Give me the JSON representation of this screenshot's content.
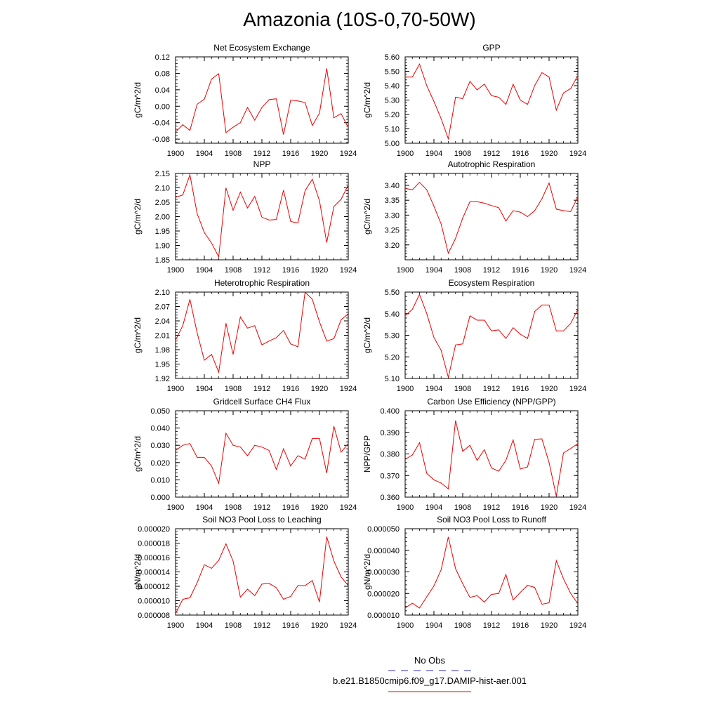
{
  "figure": {
    "title": "Amazonia (10S-0,70-50W)"
  },
  "colors": {
    "model_line": "#ee0000",
    "obs_line": "#5555cc"
  },
  "legend": {
    "items": [
      {
        "label": "No Obs",
        "style": "dashed",
        "color": "#5555cc"
      },
      {
        "label": "b.e21.B1850cmip6.f09_g17.DAMIP-hist-aer.001",
        "style": "solid",
        "color": "#ee0000"
      }
    ]
  },
  "chart_data": [
    {
      "type": "line",
      "title": "Net Ecosystem Exchange",
      "ylabel": "gC/m^2/d",
      "xlim": [
        1900,
        1924
      ],
      "ylim": [
        -0.09,
        0.12
      ],
      "xticks": [
        1900,
        1904,
        1908,
        1912,
        1916,
        1920,
        1924
      ],
      "yticks": [
        -0.08,
        -0.04,
        0.0,
        0.04,
        0.08,
        0.12
      ],
      "ytick_labels": [
        "-0.08",
        "-0.04",
        "0.00",
        "0.04",
        "0.08",
        "0.12"
      ],
      "series": [
        {
          "x": [
            1900,
            1901,
            1902,
            1903,
            1904,
            1905,
            1906,
            1907,
            1908,
            1909,
            1910,
            1911,
            1912,
            1913,
            1914,
            1915,
            1916,
            1917,
            1918,
            1919,
            1920,
            1921,
            1922,
            1923,
            1924
          ],
          "values": [
            -0.063,
            -0.045,
            -0.059,
            0.005,
            0.017,
            0.066,
            0.079,
            -0.064,
            -0.051,
            -0.04,
            -0.003,
            -0.034,
            -0.003,
            0.016,
            0.018,
            -0.069,
            0.015,
            0.013,
            0.009,
            -0.047,
            -0.017,
            0.092,
            -0.028,
            -0.018,
            -0.052
          ]
        }
      ]
    },
    {
      "type": "line",
      "title": "GPP",
      "ylabel": "gC/m^2/d",
      "xlim": [
        1900,
        1924
      ],
      "ylim": [
        5.0,
        5.6
      ],
      "xticks": [
        1900,
        1904,
        1908,
        1912,
        1916,
        1920,
        1924
      ],
      "yticks": [
        5.0,
        5.1,
        5.2,
        5.3,
        5.4,
        5.5,
        5.6
      ],
      "ytick_labels": [
        "5.00",
        "5.10",
        "5.20",
        "5.30",
        "5.40",
        "5.50",
        "5.60"
      ],
      "series": [
        {
          "x": [
            1900,
            1901,
            1902,
            1903,
            1904,
            1905,
            1906,
            1907,
            1908,
            1909,
            1910,
            1911,
            1912,
            1913,
            1914,
            1915,
            1916,
            1917,
            1918,
            1919,
            1920,
            1921,
            1922,
            1923,
            1924
          ],
          "values": [
            5.46,
            5.46,
            5.55,
            5.4,
            5.29,
            5.17,
            5.03,
            5.32,
            5.31,
            5.43,
            5.37,
            5.41,
            5.33,
            5.32,
            5.27,
            5.41,
            5.3,
            5.27,
            5.4,
            5.49,
            5.46,
            5.23,
            5.35,
            5.38,
            5.47
          ]
        }
      ]
    },
    {
      "type": "line",
      "title": "NPP",
      "ylabel": "gC/m^2/d",
      "xlim": [
        1900,
        1924
      ],
      "ylim": [
        1.85,
        2.15
      ],
      "xticks": [
        1900,
        1904,
        1908,
        1912,
        1916,
        1920,
        1924
      ],
      "yticks": [
        1.85,
        1.9,
        1.95,
        2.0,
        2.05,
        2.1,
        2.15
      ],
      "ytick_labels": [
        "1.85",
        "1.90",
        "1.95",
        "2.00",
        "2.05",
        "2.10",
        "2.15"
      ],
      "series": [
        {
          "x": [
            1900,
            1901,
            1902,
            1903,
            1904,
            1905,
            1906,
            1907,
            1908,
            1909,
            1910,
            1911,
            1912,
            1913,
            1914,
            1915,
            1916,
            1917,
            1918,
            1919,
            1920,
            1921,
            1922,
            1923,
            1924
          ],
          "values": [
            2.067,
            2.075,
            2.145,
            2.01,
            1.945,
            1.908,
            1.86,
            2.1,
            2.022,
            2.085,
            2.03,
            2.07,
            1.998,
            1.988,
            1.99,
            2.092,
            1.983,
            1.978,
            2.09,
            2.13,
            2.055,
            1.91,
            2.035,
            2.06,
            2.11
          ]
        }
      ]
    },
    {
      "type": "line",
      "title": "Autotrophic Respiration",
      "ylabel": "gC/m^2/d",
      "xlim": [
        1900,
        1924
      ],
      "ylim": [
        3.15,
        3.44
      ],
      "xticks": [
        1900,
        1904,
        1908,
        1912,
        1916,
        1920,
        1924
      ],
      "yticks": [
        3.2,
        3.25,
        3.3,
        3.35,
        3.4
      ],
      "ytick_labels": [
        "3.20",
        "3.25",
        "3.30",
        "3.35",
        "3.40"
      ],
      "series": [
        {
          "x": [
            1900,
            1901,
            1902,
            1903,
            1904,
            1905,
            1906,
            1907,
            1908,
            1909,
            1910,
            1911,
            1912,
            1913,
            1914,
            1915,
            1916,
            1917,
            1918,
            1919,
            1920,
            1921,
            1922,
            1923,
            1924
          ],
          "values": [
            3.39,
            3.385,
            3.41,
            3.385,
            3.33,
            3.27,
            3.172,
            3.222,
            3.29,
            3.345,
            3.345,
            3.34,
            3.332,
            3.325,
            3.28,
            3.315,
            3.31,
            3.295,
            3.315,
            3.355,
            3.408,
            3.32,
            3.315,
            3.312,
            3.362
          ]
        }
      ]
    },
    {
      "type": "line",
      "title": "Heterotrophic Respiration",
      "ylabel": "gC/m^2/d",
      "xlim": [
        1900,
        1924
      ],
      "ylim": [
        1.92,
        2.1
      ],
      "xticks": [
        1900,
        1904,
        1908,
        1912,
        1916,
        1920,
        1924
      ],
      "yticks": [
        1.92,
        1.95,
        1.98,
        2.01,
        2.04,
        2.07,
        2.1
      ],
      "ytick_labels": [
        "1.92",
        "1.95",
        "1.98",
        "2.01",
        "2.04",
        "2.07",
        "2.10"
      ],
      "series": [
        {
          "x": [
            1900,
            1901,
            1902,
            1903,
            1904,
            1905,
            1906,
            1907,
            1908,
            1909,
            1910,
            1911,
            1912,
            1913,
            1914,
            1915,
            1916,
            1917,
            1918,
            1919,
            1920,
            1921,
            1922,
            1923,
            1924
          ],
          "values": [
            2.0,
            2.03,
            2.085,
            2.015,
            1.958,
            1.97,
            1.933,
            2.035,
            1.97,
            2.048,
            2.025,
            2.03,
            1.99,
            1.998,
            2.005,
            2.02,
            1.992,
            1.986,
            2.1,
            2.085,
            2.038,
            1.998,
            2.003,
            2.042,
            2.055
          ]
        }
      ]
    },
    {
      "type": "line",
      "title": "Ecosystem Respiration",
      "ylabel": "gC/m^2/d",
      "xlim": [
        1900,
        1924
      ],
      "ylim": [
        5.1,
        5.5
      ],
      "xticks": [
        1900,
        1904,
        1908,
        1912,
        1916,
        1920,
        1924
      ],
      "yticks": [
        5.1,
        5.2,
        5.3,
        5.4,
        5.5
      ],
      "ytick_labels": [
        "5.10",
        "5.20",
        "5.30",
        "5.40",
        "5.50"
      ],
      "series": [
        {
          "x": [
            1900,
            1901,
            1902,
            1903,
            1904,
            1905,
            1906,
            1907,
            1908,
            1909,
            1910,
            1911,
            1912,
            1913,
            1914,
            1915,
            1916,
            1917,
            1918,
            1919,
            1920,
            1921,
            1922,
            1923,
            1924
          ],
          "values": [
            5.39,
            5.42,
            5.49,
            5.4,
            5.29,
            5.23,
            5.105,
            5.255,
            5.26,
            5.39,
            5.37,
            5.37,
            5.32,
            5.325,
            5.285,
            5.335,
            5.305,
            5.285,
            5.41,
            5.44,
            5.44,
            5.32,
            5.32,
            5.355,
            5.42
          ]
        }
      ]
    },
    {
      "type": "line",
      "title": "Gridcell Surface CH4 Flux",
      "ylabel": "gC/m^2/d",
      "xlim": [
        1900,
        1924
      ],
      "ylim": [
        0.0,
        0.05
      ],
      "xticks": [
        1900,
        1904,
        1908,
        1912,
        1916,
        1920,
        1924
      ],
      "yticks": [
        0.0,
        0.01,
        0.02,
        0.03,
        0.04,
        0.05
      ],
      "ytick_labels": [
        "0.000",
        "0.010",
        "0.020",
        "0.030",
        "0.040",
        "0.050"
      ],
      "series": [
        {
          "x": [
            1900,
            1901,
            1902,
            1903,
            1904,
            1905,
            1906,
            1907,
            1908,
            1909,
            1910,
            1911,
            1912,
            1913,
            1914,
            1915,
            1916,
            1917,
            1918,
            1919,
            1920,
            1921,
            1922,
            1923,
            1924
          ],
          "values": [
            0.027,
            0.03,
            0.031,
            0.023,
            0.023,
            0.018,
            0.008,
            0.037,
            0.03,
            0.029,
            0.024,
            0.03,
            0.029,
            0.027,
            0.016,
            0.028,
            0.018,
            0.024,
            0.022,
            0.034,
            0.034,
            0.014,
            0.041,
            0.026,
            0.031
          ]
        }
      ]
    },
    {
      "type": "line",
      "title": "Carbon Use Efficiency (NPP/GPP)",
      "ylabel": "NPP/GPP",
      "xlim": [
        1900,
        1924
      ],
      "ylim": [
        0.36,
        0.4
      ],
      "xticks": [
        1900,
        1904,
        1908,
        1912,
        1916,
        1920,
        1924
      ],
      "yticks": [
        0.36,
        0.37,
        0.38,
        0.39,
        0.4
      ],
      "ytick_labels": [
        "0.360",
        "0.370",
        "0.380",
        "0.390",
        "0.400"
      ],
      "series": [
        {
          "x": [
            1900,
            1901,
            1902,
            1903,
            1904,
            1905,
            1906,
            1907,
            1908,
            1909,
            1910,
            1911,
            1912,
            1913,
            1914,
            1915,
            1916,
            1917,
            1918,
            1919,
            1920,
            1921,
            1922,
            1923,
            1924
          ],
          "values": [
            0.3775,
            0.3795,
            0.3852,
            0.371,
            0.368,
            0.3665,
            0.3638,
            0.3955,
            0.3812,
            0.384,
            0.377,
            0.382,
            0.3735,
            0.372,
            0.377,
            0.3865,
            0.373,
            0.374,
            0.3868,
            0.387,
            0.376,
            0.3605,
            0.3805,
            0.3825,
            0.3848
          ]
        }
      ]
    },
    {
      "type": "line",
      "title": "Soil NO3 Pool Loss to Leaching",
      "ylabel": "gN/m^2/d",
      "xlim": [
        1900,
        1924
      ],
      "ylim": [
        8e-06,
        2e-05
      ],
      "xticks": [
        1900,
        1904,
        1908,
        1912,
        1916,
        1920,
        1924
      ],
      "yticks": [
        8e-06,
        1e-05,
        1.2e-05,
        1.4e-05,
        1.6e-05,
        1.8e-05,
        2e-05
      ],
      "ytick_labels": [
        "0.000008",
        "0.000010",
        "0.000012",
        "0.000014",
        "0.000016",
        "0.000018",
        "0.000020"
      ],
      "series": [
        {
          "x": [
            1900,
            1901,
            1902,
            1903,
            1904,
            1905,
            1906,
            1907,
            1908,
            1909,
            1910,
            1911,
            1912,
            1913,
            1914,
            1915,
            1916,
            1917,
            1918,
            1919,
            1920,
            1921,
            1922,
            1923,
            1924
          ],
          "values": [
            8.2e-06,
            1.02e-05,
            1.04e-05,
            1.25e-05,
            1.5e-05,
            1.45e-05,
            1.56e-05,
            1.79e-05,
            1.55e-05,
            1.05e-05,
            1.16e-05,
            1.07e-05,
            1.23e-05,
            1.24e-05,
            1.18e-05,
            1.02e-05,
            1.06e-05,
            1.21e-05,
            1.21e-05,
            1.28e-05,
            9.8e-06,
            1.89e-05,
            1.55e-05,
            1.33e-05,
            1.21e-05
          ]
        }
      ]
    },
    {
      "type": "line",
      "title": "Soil NO3 Pool Loss to Runoff",
      "ylabel": "gN/m^2/d",
      "xlim": [
        1900,
        1924
      ],
      "ylim": [
        1e-05,
        5e-05
      ],
      "xticks": [
        1900,
        1904,
        1908,
        1912,
        1916,
        1920,
        1924
      ],
      "yticks": [
        1e-05,
        2e-05,
        3e-05,
        4e-05,
        5e-05
      ],
      "ytick_labels": [
        "0.000010",
        "0.000020",
        "0.000030",
        "0.000040",
        "0.000050"
      ],
      "series": [
        {
          "x": [
            1900,
            1901,
            1902,
            1903,
            1904,
            1905,
            1906,
            1907,
            1908,
            1909,
            1910,
            1911,
            1912,
            1913,
            1914,
            1915,
            1916,
            1917,
            1918,
            1919,
            1920,
            1921,
            1922,
            1923,
            1924
          ],
          "values": [
            1.33e-05,
            1.55e-05,
            1.33e-05,
            1.85e-05,
            2.35e-05,
            3.1e-05,
            4.62e-05,
            3.15e-05,
            2.45e-05,
            1.82e-05,
            1.9e-05,
            1.6e-05,
            1.96e-05,
            2e-05,
            2.88e-05,
            1.7e-05,
            2.05e-05,
            2.38e-05,
            2.28e-05,
            1.5e-05,
            1.57e-05,
            3.52e-05,
            2.68e-05,
            2e-05,
            1.53e-05
          ]
        }
      ]
    }
  ]
}
